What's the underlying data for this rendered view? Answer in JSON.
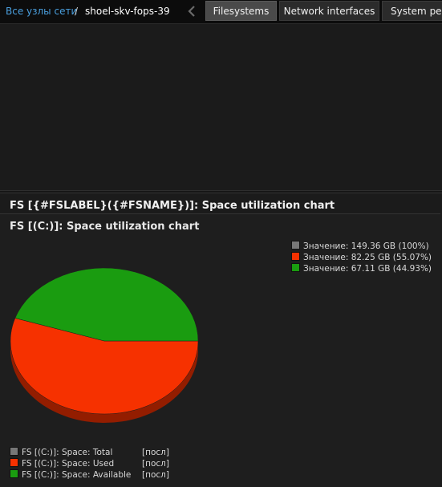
{
  "breadcrumb": {
    "root": "Все узлы сети",
    "separator": "/",
    "host": "shoel-skv-fops-39"
  },
  "tabs": [
    {
      "label": "Filesystems",
      "active": true
    },
    {
      "label": "Network interfaces",
      "active": false
    },
    {
      "label": "System perf",
      "active": false
    }
  ],
  "graph": {
    "title": "FS [{#FSLABEL}({#FSNAME})]: Space utilization chart"
  },
  "colors": {
    "total": "#777777",
    "used": "#f63100",
    "available": "#1a9c10"
  },
  "chart_data": {
    "type": "pie",
    "title": "FS [(C:)]: Space utilization chart",
    "unit": "GB",
    "slices": [
      {
        "name": "FS [(C:)]: Space: Used",
        "value": 82.25,
        "percent": 55.07,
        "color": "#f63100"
      },
      {
        "name": "FS [(C:)]: Space: Available",
        "value": 67.11,
        "percent": 44.93,
        "color": "#1a9c10"
      }
    ],
    "total": {
      "name": "FS [(C:)]: Space: Total",
      "value": 149.36,
      "percent": 100,
      "color": "#777777"
    },
    "legend_top": [
      {
        "text": "Значение: 149.36 GB (100%)",
        "color": "#777777"
      },
      {
        "text": "Значение: 82.25 GB (55.07%)",
        "color": "#f63100"
      },
      {
        "text": "Значение: 67.11 GB (44.93%)",
        "color": "#1a9c10"
      }
    ],
    "legend_bottom": [
      {
        "name": "FS [(C:)]: Space: Total",
        "func": "[посл]",
        "color": "#777777"
      },
      {
        "name": "FS [(C:)]: Space: Used",
        "func": "[посл]",
        "color": "#f63100"
      },
      {
        "name": "FS [(C:)]: Space: Available",
        "func": "[посл]",
        "color": "#1a9c10"
      }
    ],
    "legend_placement": "top-right"
  }
}
